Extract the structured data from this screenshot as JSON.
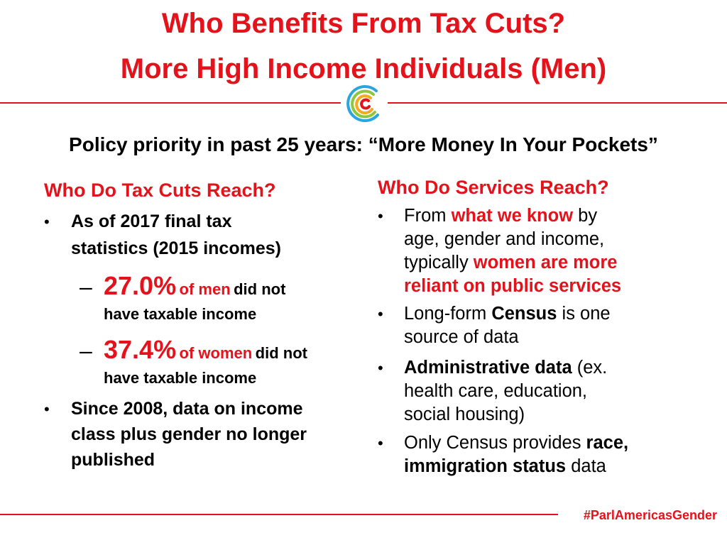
{
  "header": {
    "title_line1": "Who Benefits From Tax Cuts?",
    "title_line2": "More High Income Individuals (Men)",
    "subtitle": "Policy priority in past 25 years: “More Money In Your Pockets”"
  },
  "left": {
    "heading": "Who Do Tax Cuts Reach?",
    "bullet1_line1": "As of 2017 final tax",
    "bullet1_line2": "statistics (2015 incomes)",
    "sub1_pct": "27.0%",
    "sub1_group": "of men",
    "sub1_tail": "did not",
    "sub1_line2": "have taxable income",
    "sub2_pct": "37.4%",
    "sub2_group": "of women",
    "sub2_tail": "did not",
    "sub2_line2": "have taxable income",
    "bullet2_line1": "Since 2008, data on income",
    "bullet2_line2": "class plus gender no longer",
    "bullet2_line3": "published"
  },
  "right": {
    "heading": "Who Do Services Reach?",
    "b1_pre": "From",
    "b1_red": "what we know",
    "b1_post": "by",
    "b1_line2": "age, gender and income,",
    "b1_line3_pre": "typically",
    "b1_line3_red": "women are more",
    "b1_line4_red": "reliant on public services",
    "b2_pre": "Long-form",
    "b2_bold": "Census",
    "b2_post": "is one",
    "b2_line2": "source of data",
    "b3_bold": "Administrative data",
    "b3_post": "(ex.",
    "b3_line2": "health care, education,",
    "b3_line3": "social housing)",
    "b4_pre": "Only Census provides",
    "b4_bold1": "race,",
    "b4_bold2": "immigration status",
    "b4_post": "data"
  },
  "footer": {
    "hashtag": "#ParlAmericasGender"
  },
  "colors": {
    "accent": "#e4121b",
    "text": "#000000"
  },
  "icons": {
    "logo": "parlamericas-logo",
    "bullet": "bullet-dot",
    "dash": "en-dash"
  }
}
